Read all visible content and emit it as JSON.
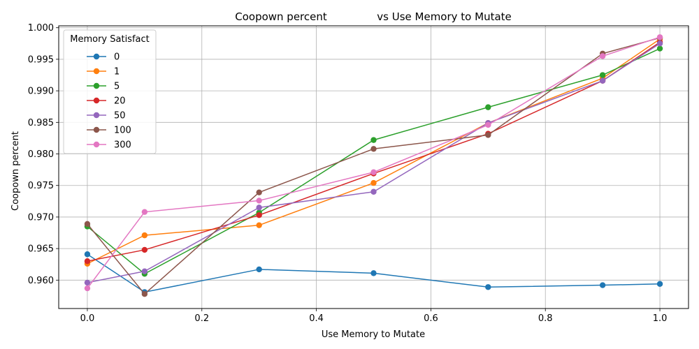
{
  "chart_data": {
    "type": "line",
    "title": "Coopown percent               vs Use Memory to Mutate",
    "xlabel": "Use Memory to Mutate",
    "ylabel": "Coopown percent",
    "xlim": [
      -0.05,
      1.05
    ],
    "ylim": [
      0.9555,
      1.0003
    ],
    "x_ticks": [
      0.0,
      0.2,
      0.4,
      0.6,
      0.8,
      1.0
    ],
    "x_tick_labels": [
      "0.0",
      "0.2",
      "0.4",
      "0.6",
      "0.8",
      "1.0"
    ],
    "y_ticks": [
      0.96,
      0.965,
      0.97,
      0.975,
      0.98,
      0.985,
      0.99,
      0.995,
      1.0
    ],
    "y_tick_labels": [
      "0.960",
      "0.965",
      "0.970",
      "0.975",
      "0.980",
      "0.985",
      "0.990",
      "0.995",
      "1.000"
    ],
    "grid": true,
    "legend_title": "Memory Satisfact",
    "legend_position": "top-left",
    "x": [
      0.0,
      0.1,
      0.3,
      0.5,
      0.7,
      0.9,
      1.0
    ],
    "series": [
      {
        "name": "0",
        "color": "#1f77b4",
        "values": [
          0.9641,
          0.9581,
          0.9617,
          0.9611,
          0.9589,
          0.9592,
          0.9594
        ]
      },
      {
        "name": "1",
        "color": "#ff7f0e",
        "values": [
          0.9626,
          0.9671,
          0.9687,
          0.9754,
          0.9849,
          0.992,
          0.9982
        ]
      },
      {
        "name": "5",
        "color": "#2ca02c",
        "values": [
          0.9685,
          0.961,
          0.9707,
          0.9822,
          0.9874,
          0.9925,
          0.9967
        ]
      },
      {
        "name": "20",
        "color": "#d62728",
        "values": [
          0.963,
          0.9648,
          0.9703,
          0.9769,
          0.9832,
          0.9916,
          0.9977
        ]
      },
      {
        "name": "50",
        "color": "#9467bd",
        "values": [
          0.9596,
          0.9614,
          0.9715,
          0.974,
          0.9849,
          0.9916,
          0.9975
        ]
      },
      {
        "name": "100",
        "color": "#8c564b",
        "values": [
          0.9689,
          0.9578,
          0.9739,
          0.9808,
          0.983,
          0.9959,
          0.9984
        ]
      },
      {
        "name": "300",
        "color": "#e377c2",
        "values": [
          0.9587,
          0.9708,
          0.9726,
          0.9771,
          0.9846,
          0.9955,
          0.9985
        ]
      }
    ]
  }
}
